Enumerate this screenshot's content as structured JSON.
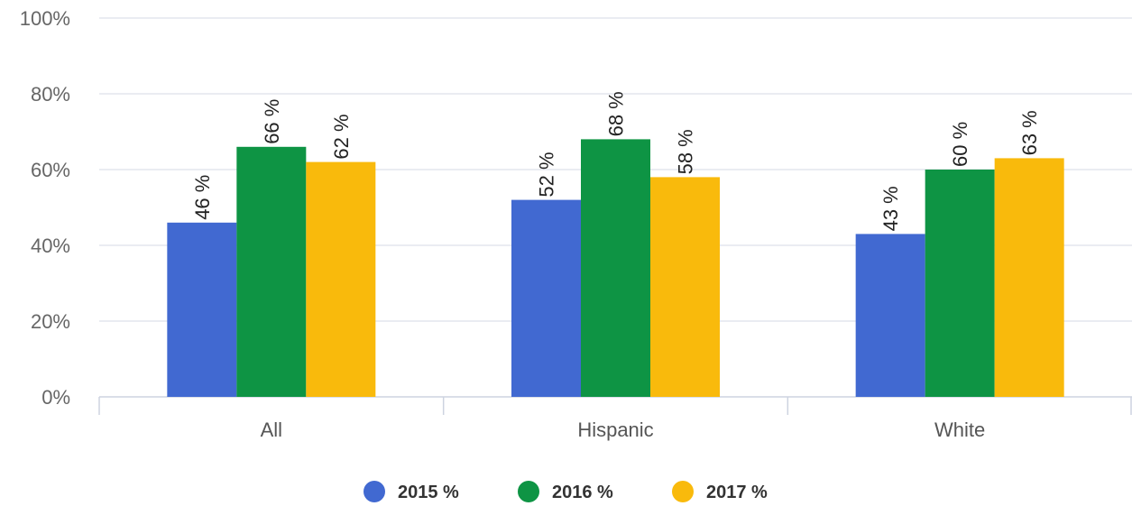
{
  "chart_data": {
    "type": "bar",
    "title": "",
    "xlabel": "",
    "ylabel": "",
    "categories": [
      "All",
      "Hispanic",
      "White"
    ],
    "series": [
      {
        "name": "2015 %",
        "color": "#4169D1",
        "values": [
          46,
          52,
          43
        ],
        "labels": [
          "46 %",
          "52 %",
          "43 %"
        ]
      },
      {
        "name": "2016 %",
        "color": "#0E9444",
        "values": [
          66,
          68,
          60
        ],
        "labels": [
          "66 %",
          "68 %",
          "60 %"
        ]
      },
      {
        "name": "2017 %",
        "color": "#F9BA0C",
        "values": [
          62,
          58,
          63
        ],
        "labels": [
          "62 %",
          "58 %",
          "63 %"
        ]
      }
    ],
    "ylim": [
      0,
      100
    ],
    "yticks": [
      0,
      20,
      40,
      60,
      80,
      100
    ],
    "ytick_labels": [
      "0%",
      "20%",
      "40%",
      "60%",
      "80%",
      "100%"
    ],
    "grid": true,
    "legend_position": "bottom-center",
    "data_label_orientation": "vertical"
  }
}
